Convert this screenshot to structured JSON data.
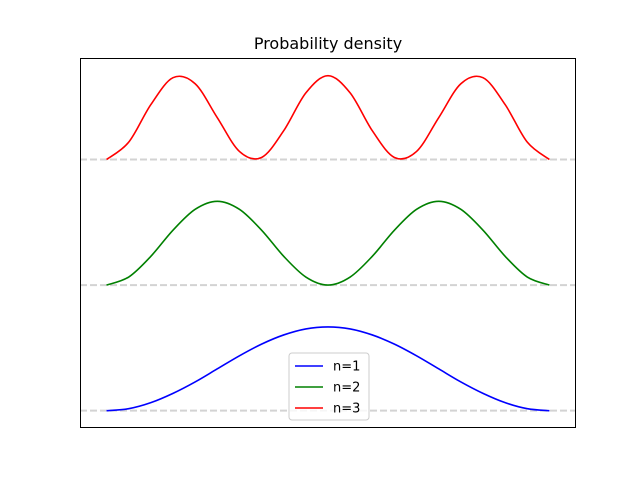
{
  "chart_data": {
    "type": "line",
    "title": "Probability density",
    "xlabel": "",
    "ylabel": "",
    "xlim": [
      -0.06,
      1.06
    ],
    "ylim": [
      -0.13,
      2.8
    ],
    "grid": false,
    "axis_ticks": "hidden",
    "legend_placement": "bottom-center",
    "baselines": {
      "values": [
        0,
        1,
        2
      ],
      "color": "#d3d3d3",
      "style": "dashed"
    },
    "series": [
      {
        "name": "n=1",
        "color": "#0000ff",
        "offset": 0,
        "x": [
          0,
          0.05,
          0.1,
          0.15,
          0.2,
          0.25,
          0.3,
          0.35,
          0.4,
          0.45,
          0.5,
          0.55,
          0.6,
          0.65,
          0.7,
          0.75,
          0.8,
          0.85,
          0.9,
          0.95,
          1
        ],
        "y": [
          0,
          0.016,
          0.064,
          0.138,
          0.229,
          0.333,
          0.437,
          0.53,
          0.603,
          0.651,
          0.667,
          0.651,
          0.603,
          0.53,
          0.437,
          0.333,
          0.229,
          0.138,
          0.064,
          0.016,
          0
        ]
      },
      {
        "name": "n=2",
        "color": "#008000",
        "offset": 1,
        "x": [
          0,
          0.05,
          0.1,
          0.15,
          0.2,
          0.25,
          0.3,
          0.35,
          0.4,
          0.45,
          0.5,
          0.55,
          0.6,
          0.65,
          0.7,
          0.75,
          0.8,
          0.85,
          0.9,
          0.95,
          1
        ],
        "y": [
          1,
          1.064,
          1.229,
          1.437,
          1.603,
          1.667,
          1.603,
          1.437,
          1.229,
          1.064,
          1,
          1.064,
          1.229,
          1.437,
          1.603,
          1.667,
          1.603,
          1.437,
          1.229,
          1.064,
          1
        ]
      },
      {
        "name": "n=3",
        "color": "#ff0000",
        "offset": 2,
        "x": [
          0,
          0.05,
          0.1,
          0.15,
          0.2,
          0.25,
          0.3,
          0.35,
          0.4,
          0.45,
          0.5,
          0.55,
          0.6,
          0.65,
          0.7,
          0.75,
          0.8,
          0.85,
          0.9,
          0.95,
          1
        ],
        "y": [
          2,
          2.138,
          2.437,
          2.651,
          2.603,
          2.333,
          2.064,
          2.016,
          2.229,
          2.53,
          2.667,
          2.53,
          2.229,
          2.016,
          2.064,
          2.333,
          2.603,
          2.651,
          2.437,
          2.138,
          2
        ]
      }
    ]
  }
}
